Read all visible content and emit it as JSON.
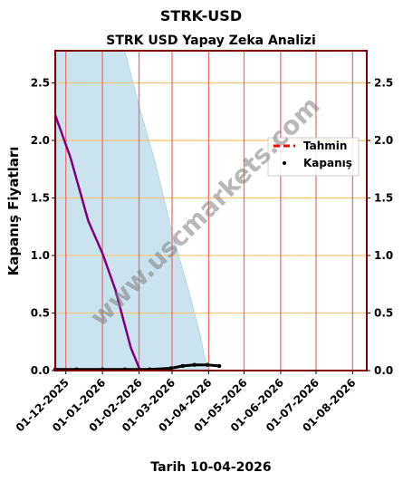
{
  "title": "STRK-USD",
  "chart_data": {
    "type": "line",
    "title": "STRK USD Yapay Zeka Analizi",
    "ylabel": "Kapanış Fiyatları",
    "xlabel": "Tarih 10-04-2026",
    "ylim": [
      0,
      2.78
    ],
    "y_ticks": [
      "0.0",
      "0.5",
      "1.0",
      "1.5",
      "2.0",
      "2.5"
    ],
    "x_ticks": [
      "01-12-2025",
      "01-01-2026",
      "01-02-2026",
      "01-03-2026",
      "01-04-2026",
      "01-05-2026",
      "01-06-2026",
      "01-07-2026",
      "01-08-2026"
    ],
    "xlim": [
      "2025-11-22",
      "2026-08-13"
    ],
    "grid": true,
    "legend_position": "right",
    "colors": {
      "prediction": "#ff0000",
      "close": "#000000",
      "forecast_line": "#800080",
      "band": "#b8d9ea",
      "vgrid": "#f07070",
      "hgrid": "#f5c77a",
      "frame": "#800000"
    },
    "series": [
      {
        "name": "Tahmin",
        "style": "dashed",
        "x": [
          "2025-11-22",
          "2025-12-05",
          "2025-12-20",
          "2026-01-01",
          "2026-01-12",
          "2026-01-25",
          "2026-02-02"
        ],
        "y": [
          2.22,
          1.85,
          1.3,
          1.02,
          0.7,
          0.2,
          0.0
        ]
      },
      {
        "name": "Kapanış",
        "style": "points",
        "x": [
          "2025-11-22",
          "2025-12-10",
          "2026-01-01",
          "2026-01-20",
          "2026-02-10",
          "2026-02-28",
          "2026-03-10",
          "2026-03-20",
          "2026-03-31",
          "2026-04-10"
        ],
        "y": [
          0.01,
          0.01,
          0.01,
          0.01,
          0.01,
          0.02,
          0.04,
          0.05,
          0.05,
          0.04
        ]
      }
    ],
    "band": {
      "x": [
        "2025-11-23",
        "2025-11-25",
        "2025-12-20",
        "2026-01-05",
        "2026-01-20",
        "2026-02-01",
        "2026-02-15",
        "2026-03-01",
        "2026-03-15",
        "2026-03-25",
        "2026-03-31"
      ],
      "upper": [
        2.78,
        2.78,
        2.78,
        2.78,
        2.78,
        2.3,
        1.8,
        1.2,
        0.7,
        0.3,
        0.0
      ],
      "lower": [
        0,
        0,
        0,
        0,
        0,
        0,
        0,
        0,
        0,
        0,
        0
      ]
    },
    "watermark": "www.uscmarkets.com"
  }
}
